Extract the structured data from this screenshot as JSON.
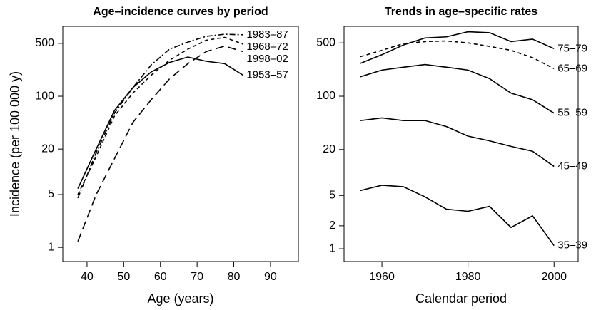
{
  "chart_data": [
    {
      "type": "line",
      "title": "Age–incidence curves by period",
      "xlabel": "Age (years)",
      "ylabel": "Incidence (per 100 000 y)",
      "log_y": true,
      "xlim": [
        33.4,
        97.6
      ],
      "xticks": [
        40,
        50,
        60,
        70,
        80,
        90
      ],
      "ylim": [
        0.65,
        840
      ],
      "yticks": [
        1,
        5,
        20,
        100,
        500
      ],
      "x": [
        37.5,
        42.5,
        47.5,
        52.5,
        57.5,
        62.5,
        67.5,
        72.5,
        77.5,
        82.5
      ],
      "series": [
        {
          "name": "1983–87",
          "color": "#000000",
          "dash": "8 3 2 3",
          "values": [
            4.5,
            18,
            60,
            130,
            260,
            420,
            520,
            620,
            660,
            650
          ]
        },
        {
          "name": "1968–72",
          "color": "#000000",
          "dash": "5 4",
          "values": [
            5,
            16,
            55,
            110,
            190,
            300,
            420,
            550,
            600,
            490
          ]
        },
        {
          "name": "1998–02",
          "color": "#000000",
          "dash": "12 6",
          "values": [
            1.2,
            5,
            15,
            45,
            90,
            170,
            270,
            390,
            460,
            390
          ]
        },
        {
          "name": "1953–57",
          "color": "#000000",
          "dash": "none",
          "values": [
            6,
            20,
            65,
            130,
            210,
            280,
            330,
            290,
            270,
            190
          ]
        }
      ]
    },
    {
      "type": "line",
      "title": "Trends in age–specific rates",
      "xlabel": "Calendar period",
      "log_y": true,
      "xlim": [
        1951.2,
        2005.6
      ],
      "xticks": [
        1960,
        1980,
        2000
      ],
      "ylim": [
        0.68,
        824
      ],
      "yticks": [
        1,
        2,
        5,
        20,
        100,
        500
      ],
      "x": [
        1955,
        1960,
        1965,
        1970,
        1975,
        1980,
        1985,
        1990,
        1995,
        2000
      ],
      "series": [
        {
          "name": "75–79",
          "color": "#000000",
          "dash": "none",
          "values": [
            270,
            350,
            470,
            580,
            600,
            700,
            680,
            520,
            560,
            420
          ]
        },
        {
          "name": "65–69",
          "color": "#000000",
          "dash": "5 4",
          "values": [
            330,
            400,
            490,
            520,
            530,
            500,
            450,
            400,
            320,
            230
          ]
        },
        {
          "name": "55–59",
          "color": "#000000",
          "dash": "none",
          "values": [
            180,
            220,
            240,
            260,
            240,
            220,
            170,
            110,
            90,
            60
          ]
        },
        {
          "name": "45–49",
          "color": "#000000",
          "dash": "none",
          "values": [
            48,
            52,
            48,
            48,
            40,
            30,
            26,
            22,
            19,
            12
          ]
        },
        {
          "name": "35–39",
          "color": "#000000",
          "dash": "none",
          "values": [
            5.8,
            6.8,
            6.5,
            4.8,
            3.3,
            3.1,
            3.6,
            1.9,
            2.7,
            1.1
          ]
        }
      ]
    }
  ]
}
